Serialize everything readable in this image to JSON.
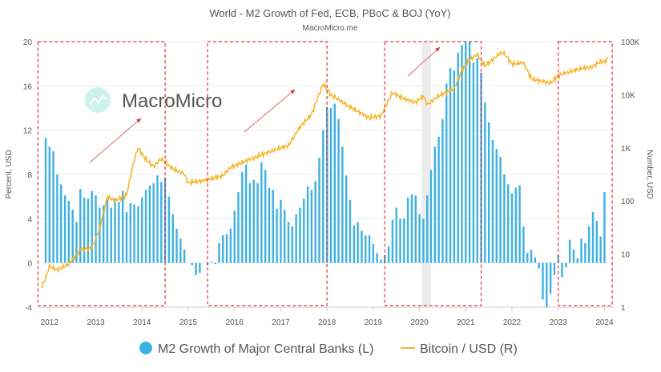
{
  "chart_data": {
    "type": "bar+line",
    "title": "World - M2 Growth of Fed, ECB, PBoC & BOJ (YoY)",
    "subtitle": "MacroMicro.me",
    "watermark": "MacroMicro",
    "ylabel_left": "Percent, USD",
    "ylabel_right": "Number, USD",
    "ylim_left": [
      -4,
      20
    ],
    "yticks_left": [
      "20",
      "16",
      "12",
      "8",
      "4",
      "0",
      "-4"
    ],
    "yticks_left_values": [
      20,
      16,
      12,
      8,
      4,
      0,
      -4
    ],
    "ylim_right": [
      1,
      100000
    ],
    "right_scale": "log",
    "yticks_right": [
      "100K",
      "10K",
      "1K",
      "100",
      "10",
      "1"
    ],
    "yticks_right_values": [
      100000,
      10000,
      1000,
      100,
      10,
      1
    ],
    "xticks": [
      "2012",
      "2013",
      "2014",
      "2015",
      "2016",
      "2017",
      "2018",
      "2019",
      "2020",
      "2021",
      "2022",
      "2023",
      "2024"
    ],
    "grid": true,
    "legend_position": "bottom",
    "colors": {
      "bars": "#3db1e3",
      "line": "#f6b530",
      "highlight_box": "#d9363e",
      "shade": "#ececec"
    },
    "bar_series": {
      "name": "M2 Growth of Major Central Banks (L)",
      "start": "2011-12",
      "frequency": "monthly",
      "values": [
        11.3,
        10.5,
        10.1,
        8.0,
        7.1,
        6.1,
        5.6,
        4.8,
        3.7,
        6.7,
        5.9,
        5.8,
        6.5,
        6.1,
        5.0,
        5.2,
        5.7,
        5.0,
        5.8,
        5.5,
        6.5,
        4.6,
        5.4,
        5.3,
        5.1,
        5.9,
        6.6,
        7.0,
        7.2,
        7.9,
        7.3,
        7.7,
        6.0,
        4.4,
        3.1,
        2.2,
        1.2,
        0,
        -0.2,
        -1.1,
        -0.9,
        0,
        -0.2,
        0.1,
        -0.1,
        1.8,
        2.5,
        2.6,
        3.1,
        4.7,
        6.4,
        8.2,
        8.9,
        7.2,
        7.5,
        7.2,
        9.1,
        8.4,
        6.8,
        6.6,
        4.9,
        5.7,
        4.8,
        3.7,
        3.3,
        4.4,
        5.0,
        5.8,
        6.9,
        6.6,
        7.4,
        9.5,
        12.0,
        14.1,
        14.0,
        14.4,
        13.0,
        10.5,
        7.9,
        5.7,
        3.4,
        3.7,
        2.9,
        2.5,
        2.5,
        1.7,
        0.9,
        0.3,
        0.7,
        1.5,
        3.9,
        5.0,
        4.0,
        4.0,
        5.9,
        6.2,
        6.1,
        4.4,
        4.0,
        6.1,
        8.4,
        10.5,
        11.4,
        13.0,
        16.2,
        17.6,
        17.4,
        19.0,
        19.7,
        20.5,
        20.5,
        18.1,
        18.5,
        17.2,
        14.5,
        12.7,
        11.1,
        10.3,
        9.6,
        8.0,
        7.1,
        6.3,
        6.8,
        7.0,
        3.3,
        0.9,
        1.2,
        0.5,
        -0.5,
        -3.3,
        -4.0,
        -2.8,
        -1.1,
        0.7,
        -1.3,
        -0.4,
        2.1,
        1.2,
        0.4,
        2.2,
        1.8,
        3.3,
        4.6,
        3.8,
        2.4,
        6.4
      ]
    },
    "line_series": {
      "name": "Bitcoin / USD (R)",
      "points": [
        [
          "2011-11",
          2.5
        ],
        [
          "2011-12",
          3.5
        ],
        [
          "2012-01",
          6
        ],
        [
          "2012-03",
          5
        ],
        [
          "2012-06",
          6.5
        ],
        [
          "2012-09",
          12
        ],
        [
          "2012-12",
          13
        ],
        [
          "2013-02",
          30
        ],
        [
          "2013-04",
          120
        ],
        [
          "2013-06",
          100
        ],
        [
          "2013-09",
          130
        ],
        [
          "2013-11",
          600
        ],
        [
          "2013-12",
          1000
        ],
        [
          "2014-02",
          600
        ],
        [
          "2014-04",
          450
        ],
        [
          "2014-06",
          620
        ],
        [
          "2014-09",
          400
        ],
        [
          "2014-12",
          320
        ],
        [
          "2015-01",
          220
        ],
        [
          "2015-06",
          250
        ],
        [
          "2015-10",
          300
        ],
        [
          "2015-12",
          430
        ],
        [
          "2016-06",
          650
        ],
        [
          "2016-12",
          950
        ],
        [
          "2017-03",
          1100
        ],
        [
          "2017-06",
          2500
        ],
        [
          "2017-09",
          4300
        ],
        [
          "2017-12",
          16000
        ],
        [
          "2018-02",
          10000
        ],
        [
          "2018-06",
          6500
        ],
        [
          "2018-11",
          4000
        ],
        [
          "2018-12",
          3700
        ],
        [
          "2019-03",
          4000
        ],
        [
          "2019-06",
          11000
        ],
        [
          "2019-09",
          8300
        ],
        [
          "2019-12",
          7200
        ],
        [
          "2020-02",
          9500
        ],
        [
          "2020-03",
          6500
        ],
        [
          "2020-06",
          9500
        ],
        [
          "2020-10",
          13000
        ],
        [
          "2020-12",
          29000
        ],
        [
          "2021-02",
          45000
        ],
        [
          "2021-04",
          58000
        ],
        [
          "2021-06",
          35000
        ],
        [
          "2021-10",
          61000
        ],
        [
          "2021-11",
          60000
        ],
        [
          "2022-01",
          38000
        ],
        [
          "2022-04",
          40000
        ],
        [
          "2022-06",
          20000
        ],
        [
          "2022-11",
          16500
        ],
        [
          "2023-01",
          23000
        ],
        [
          "2023-06",
          30000
        ],
        [
          "2023-10",
          34000
        ],
        [
          "2023-12",
          42000
        ],
        [
          "2024-01",
          42000
        ],
        [
          "2024-02",
          50000
        ]
      ]
    },
    "highlight_periods": [
      [
        "2011-10",
        "2014-07"
      ],
      [
        "2015-06",
        "2018-01"
      ],
      [
        "2019-04",
        "2021-05"
      ],
      [
        "2023-01",
        "2024-03"
      ]
    ],
    "shaded_period": [
      "2020-02",
      "2020-04"
    ]
  },
  "legend": {
    "bars_label": "M2 Growth of Major Central Banks (L)",
    "line_label": "Bitcoin / USD (R)"
  }
}
